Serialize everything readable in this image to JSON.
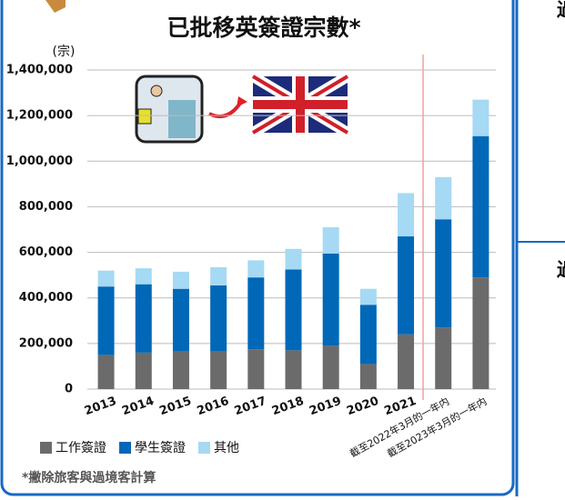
{
  "chart_data": {
    "type": "stacked_bar",
    "title": "已批移英簽證宗數*",
    "y_label": "(宗)",
    "footnote": "*撇除旅客與過境客計算",
    "categories": [
      "2013",
      "2014",
      "2015",
      "2016",
      "2017",
      "2018",
      "2019",
      "2020",
      "2021",
      "截至2022年3月的一年内",
      "截至2023年3月的一年内"
    ],
    "series": [
      {
        "name": "工作簽證",
        "color": "#6b6b6b",
        "values": [
          150000,
          160000,
          165000,
          165000,
          175000,
          170000,
          190000,
          110000,
          240000,
          270000,
          490000
        ]
      },
      {
        "name": "學生簽證",
        "color": "#0068b7",
        "values": [
          300000,
          300000,
          275000,
          290000,
          315000,
          355000,
          405000,
          260000,
          430000,
          475000,
          620000
        ]
      },
      {
        "name": "其他",
        "color": "#a6d9f3",
        "values": [
          70000,
          70000,
          75000,
          80000,
          75000,
          90000,
          115000,
          70000,
          190000,
          185000,
          160000
        ]
      }
    ],
    "ylim": [
      0,
      1400000
    ],
    "yticks": [
      0,
      {
        "value": 200000,
        "label": "200,000"
      },
      {
        "value": 400000,
        "label": "400,000"
      },
      {
        "value": 600000,
        "label": "600,000"
      },
      {
        "value": 800000,
        "label": "800,000"
      },
      {
        "value": 1000000,
        "label": "1,000,000"
      },
      {
        "value": 1200000,
        "label": "1,200,000"
      },
      {
        "value": 1400000,
        "label": "1,400,000"
      }
    ],
    "grid": true
  },
  "side_labels": [
    "過",
    "過"
  ]
}
